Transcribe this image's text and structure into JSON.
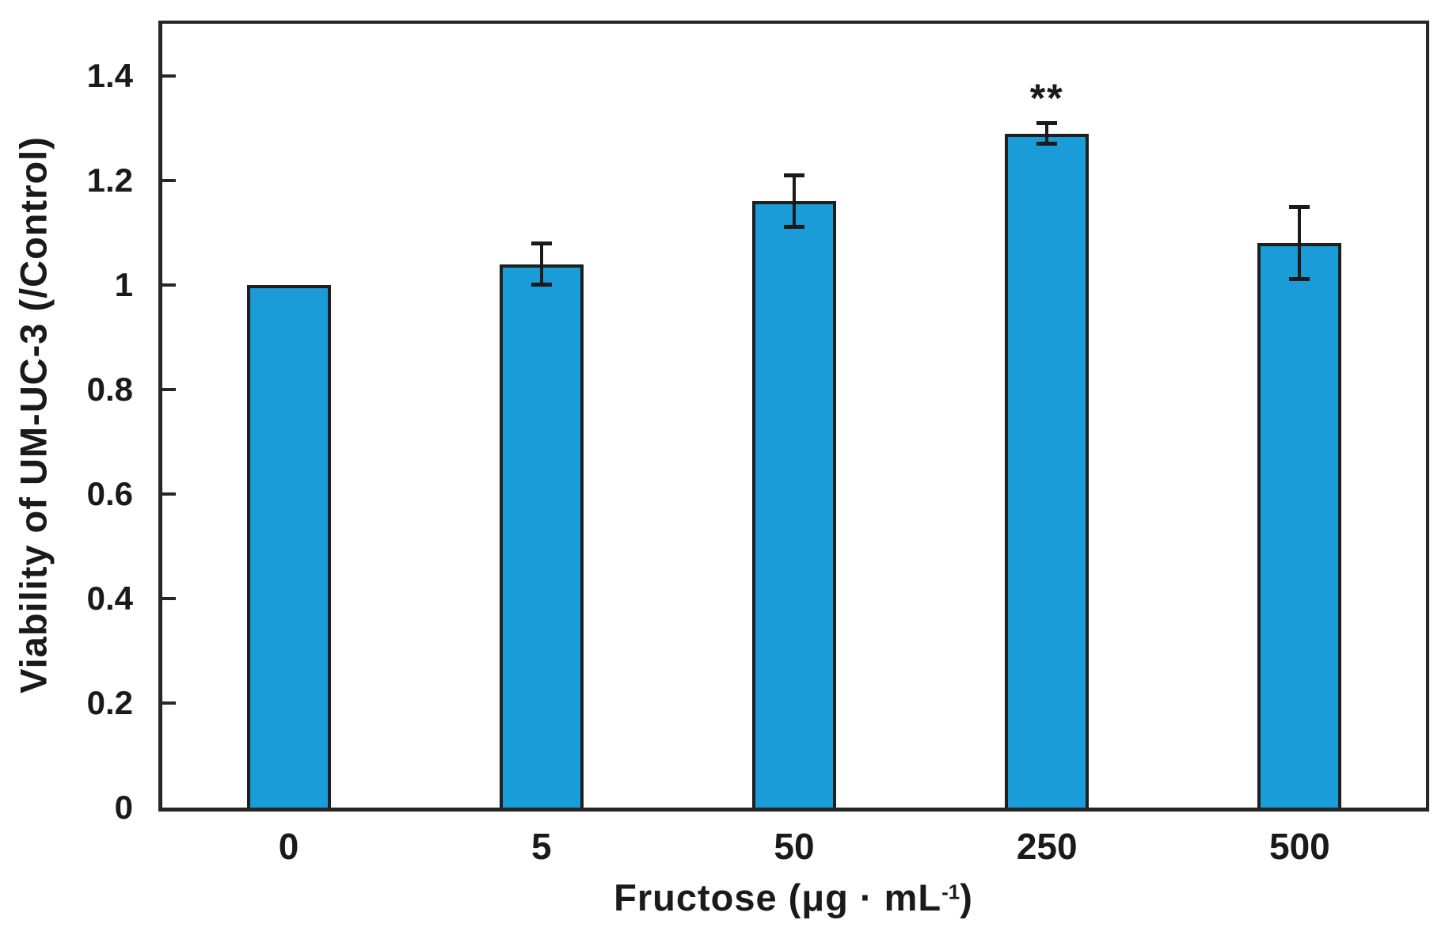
{
  "figure": {
    "background": "#ffffff"
  },
  "chart_data": {
    "type": "bar",
    "title": "",
    "categories": [
      "0",
      "5",
      "50",
      "250",
      "500"
    ],
    "values": [
      1.0,
      1.04,
      1.16,
      1.29,
      1.08
    ],
    "errors": [
      0,
      0.04,
      0.05,
      0.02,
      0.07
    ],
    "significance": [
      "",
      "",
      "",
      "**",
      ""
    ],
    "xlabel": "Fructose (μg · mL⁻¹)",
    "xlabel_display": {
      "pre": "Fructose (μg · mL",
      "sup": "-1",
      "post": ")"
    },
    "ylabel": "Viability of UM-UC-3 (/Control)",
    "ylim": [
      0,
      1.5
    ],
    "yticks": [
      0,
      0.2,
      0.4,
      0.6,
      0.8,
      1,
      1.2,
      1.4
    ],
    "ytick_labels": [
      "0",
      "0.2",
      "0.4",
      "0.6",
      "0.8",
      "1",
      "1.2",
      "1.4"
    ],
    "grid": false,
    "legend": null,
    "bar_color": "#199CD8",
    "bar_border_color": "#1f1f1f",
    "error_bar_color": "#1a1a1a",
    "axis_color": "#262626",
    "text_color": "#1a1a1a"
  }
}
